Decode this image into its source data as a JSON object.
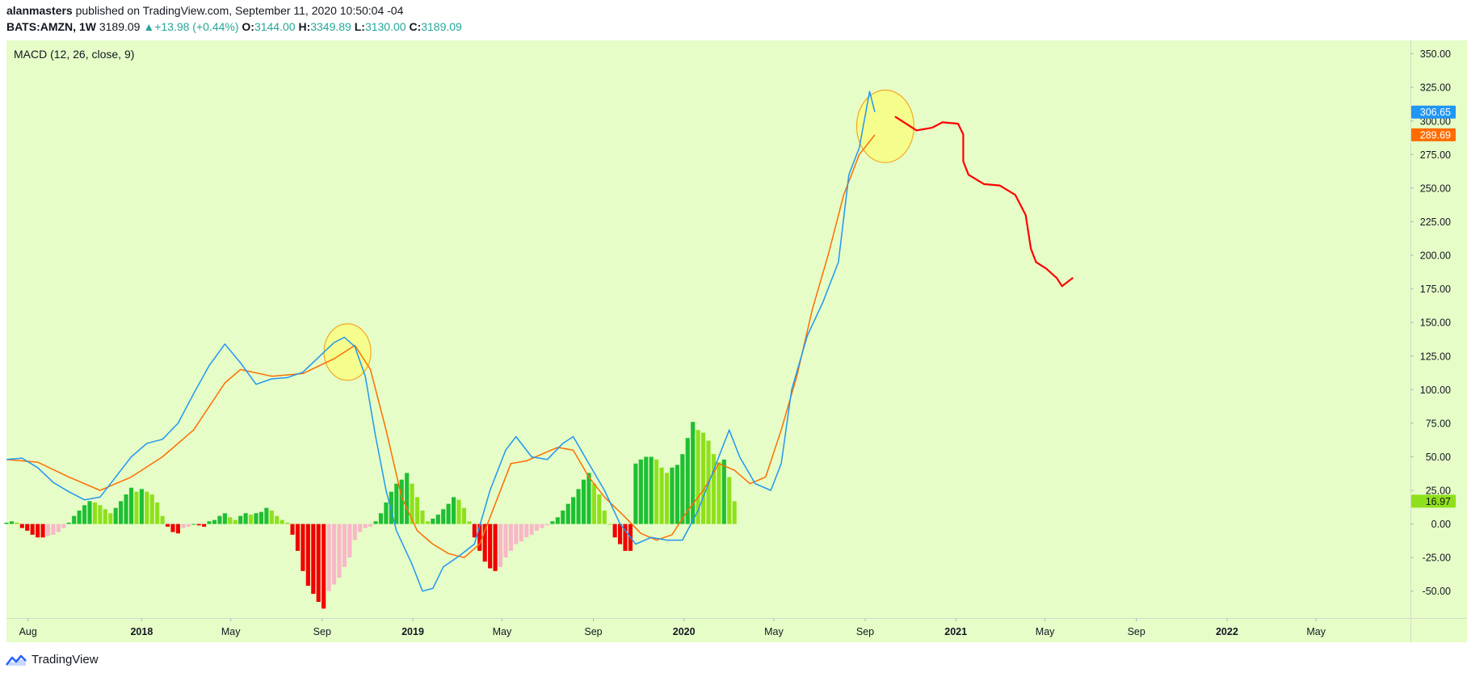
{
  "header": {
    "author": "alanmasters",
    "published_text": " published on TradingView.com, September 11, 2020 10:50:04 -04",
    "symbol": "BATS:AMZN, 1W",
    "price": "3189.09",
    "change_arrow": "▲",
    "change": "+13.98 (+0.44%)",
    "open_label": "O:",
    "open": "3144.00",
    "high_label": "H:",
    "high": "3349.89",
    "low_label": "L:",
    "low": "3130.00",
    "close_label": "C:",
    "close": "3189.09"
  },
  "colors": {
    "background": "#e6fdc7",
    "macd_line": "#2196f3",
    "signal_line": "#ff6d00",
    "hist_pos_strong": "#1fbf33",
    "hist_pos_weak": "#8fe01c",
    "hist_neg_strong": "#f00000",
    "hist_neg_weak": "#f8b8c8",
    "drawing": "#ff0000",
    "highlight": "#ffff66"
  },
  "footer": {
    "brand": "TradingView",
    "brand_icon": "tradingview-cloud-icon"
  },
  "chart_data": {
    "type": "line",
    "title": "MACD (12, 26, close, 9)",
    "y_axis": {
      "ylim": [
        -70,
        360
      ],
      "ticks": [
        350,
        325,
        300,
        275,
        250,
        225,
        200,
        175,
        150,
        125,
        100,
        75,
        50,
        25,
        0,
        -25,
        -50
      ],
      "position": "right"
    },
    "x_axis": {
      "ticks": [
        "Aug",
        "2018",
        "May",
        "Sep",
        "2019",
        "May",
        "Sep",
        "2020",
        "May",
        "Sep",
        "2021",
        "May",
        "Sep",
        "2022",
        "May"
      ],
      "bold_ticks": [
        "2018",
        "2019",
        "2020",
        "2021",
        "2022"
      ],
      "start": "2017-07-03",
      "end": "2022-09-05",
      "tick_dates": [
        "2017-08-01",
        "2018-01-01",
        "2018-05-01",
        "2018-09-01",
        "2019-01-01",
        "2019-05-01",
        "2019-09-01",
        "2020-01-01",
        "2020-05-01",
        "2020-09-01",
        "2021-01-01",
        "2021-05-01",
        "2021-09-01",
        "2022-01-01",
        "2022-05-01"
      ]
    },
    "grid": false,
    "price_labels": [
      {
        "value": 306.65,
        "text": "306.65",
        "color": "#2196f3",
        "series": "MACD"
      },
      {
        "value": 289.69,
        "text": "289.69",
        "color": "#ff6d00",
        "series": "Signal"
      },
      {
        "value": 16.97,
        "text": "16.97",
        "color": "#8fe01c",
        "series": "Histogram"
      }
    ],
    "series": [
      {
        "key": "macd",
        "type": "line",
        "color": "#2196f3",
        "points": [
          [
            "2017-07-03",
            48
          ],
          [
            "2017-07-24",
            49
          ],
          [
            "2017-08-14",
            42
          ],
          [
            "2017-09-04",
            31
          ],
          [
            "2017-09-25",
            24
          ],
          [
            "2017-10-16",
            18
          ],
          [
            "2017-11-06",
            20
          ],
          [
            "2017-11-27",
            35
          ],
          [
            "2017-12-18",
            50
          ],
          [
            "2018-01-08",
            60
          ],
          [
            "2018-01-29",
            63
          ],
          [
            "2018-02-19",
            75
          ],
          [
            "2018-03-12",
            97
          ],
          [
            "2018-04-02",
            118
          ],
          [
            "2018-04-23",
            134
          ],
          [
            "2018-05-14",
            120
          ],
          [
            "2018-06-04",
            104
          ],
          [
            "2018-06-25",
            108
          ],
          [
            "2018-07-16",
            109
          ],
          [
            "2018-08-06",
            113
          ],
          [
            "2018-08-27",
            124
          ],
          [
            "2018-09-17",
            135
          ],
          [
            "2018-10-01",
            139
          ],
          [
            "2018-10-15",
            132
          ],
          [
            "2018-10-29",
            110
          ],
          [
            "2018-11-12",
            65
          ],
          [
            "2018-11-26",
            25
          ],
          [
            "2018-12-10",
            -5
          ],
          [
            "2018-12-31",
            -30
          ],
          [
            "2019-01-14",
            -50
          ],
          [
            "2019-01-28",
            -48
          ],
          [
            "2019-02-11",
            -32
          ],
          [
            "2019-03-04",
            -24
          ],
          [
            "2019-03-25",
            -15
          ],
          [
            "2019-04-15",
            25
          ],
          [
            "2019-05-06",
            55
          ],
          [
            "2019-05-20",
            65
          ],
          [
            "2019-06-10",
            50
          ],
          [
            "2019-07-01",
            48
          ],
          [
            "2019-07-22",
            60
          ],
          [
            "2019-08-05",
            65
          ],
          [
            "2019-08-26",
            45
          ],
          [
            "2019-09-16",
            25
          ],
          [
            "2019-10-07",
            0
          ],
          [
            "2019-10-28",
            -15
          ],
          [
            "2019-11-18",
            -10
          ],
          [
            "2019-12-09",
            -12
          ],
          [
            "2019-12-30",
            -12
          ],
          [
            "2020-01-20",
            10
          ],
          [
            "2020-02-10",
            40
          ],
          [
            "2020-03-02",
            70
          ],
          [
            "2020-03-16",
            50
          ],
          [
            "2020-04-06",
            30
          ],
          [
            "2020-04-27",
            25
          ],
          [
            "2020-05-11",
            45
          ],
          [
            "2020-05-25",
            100
          ],
          [
            "2020-06-15",
            140
          ],
          [
            "2020-07-06",
            165
          ],
          [
            "2020-07-27",
            195
          ],
          [
            "2020-08-10",
            260
          ],
          [
            "2020-08-24",
            280
          ],
          [
            "2020-09-07",
            322
          ],
          [
            "2020-09-14",
            306.65
          ]
        ]
      },
      {
        "key": "signal",
        "type": "line",
        "color": "#ff6d00",
        "points": [
          [
            "2017-07-03",
            48
          ],
          [
            "2017-08-14",
            46
          ],
          [
            "2017-09-25",
            35
          ],
          [
            "2017-11-06",
            25
          ],
          [
            "2017-12-18",
            35
          ],
          [
            "2018-01-29",
            50
          ],
          [
            "2018-03-12",
            70
          ],
          [
            "2018-04-23",
            105
          ],
          [
            "2018-05-14",
            115
          ],
          [
            "2018-06-25",
            110
          ],
          [
            "2018-08-06",
            112
          ],
          [
            "2018-09-17",
            123
          ],
          [
            "2018-10-15",
            133
          ],
          [
            "2018-11-05",
            115
          ],
          [
            "2018-11-26",
            70
          ],
          [
            "2018-12-17",
            20
          ],
          [
            "2019-01-07",
            -5
          ],
          [
            "2019-01-28",
            -15
          ],
          [
            "2019-02-18",
            -22
          ],
          [
            "2019-03-11",
            -25
          ],
          [
            "2019-04-01",
            -15
          ],
          [
            "2019-04-22",
            15
          ],
          [
            "2019-05-13",
            45
          ],
          [
            "2019-06-03",
            47
          ],
          [
            "2019-06-24",
            52
          ],
          [
            "2019-07-15",
            57
          ],
          [
            "2019-08-05",
            55
          ],
          [
            "2019-08-26",
            35
          ],
          [
            "2019-09-16",
            20
          ],
          [
            "2019-10-14",
            5
          ],
          [
            "2019-11-04",
            -7
          ],
          [
            "2019-11-25",
            -12
          ],
          [
            "2019-12-16",
            -8
          ],
          [
            "2020-01-06",
            10
          ],
          [
            "2020-01-27",
            25
          ],
          [
            "2020-02-17",
            45
          ],
          [
            "2020-03-09",
            40
          ],
          [
            "2020-03-30",
            30
          ],
          [
            "2020-04-20",
            35
          ],
          [
            "2020-05-11",
            70
          ],
          [
            "2020-06-01",
            110
          ],
          [
            "2020-06-22",
            160
          ],
          [
            "2020-07-13",
            200
          ],
          [
            "2020-08-03",
            245
          ],
          [
            "2020-08-24",
            275
          ],
          [
            "2020-09-14",
            289.69
          ]
        ]
      },
      {
        "key": "histogram",
        "type": "bar",
        "start": "2017-07-03",
        "values": [
          1,
          2,
          1,
          -3,
          -5,
          -8,
          -10,
          -10,
          -9,
          -8,
          -6,
          -3,
          1,
          6,
          10,
          14,
          17,
          16,
          14,
          11,
          8,
          12,
          17,
          22,
          27,
          24,
          26,
          24,
          22,
          16,
          6,
          -2,
          -6,
          -7,
          -3,
          -2,
          0,
          -1,
          -2,
          2,
          3,
          6,
          8,
          5,
          3,
          6,
          8,
          7,
          8,
          9,
          12,
          10,
          6,
          3,
          1,
          -8,
          -20,
          -35,
          -46,
          -52,
          -58,
          -63,
          -50,
          -45,
          -40,
          -32,
          -25,
          -12,
          -6,
          -3,
          -2,
          2,
          8,
          16,
          24,
          30,
          33,
          38,
          30,
          20,
          10,
          2,
          4,
          7,
          11,
          15,
          20,
          18,
          12,
          2,
          -10,
          -20,
          -28,
          -33,
          -35,
          -32,
          -25,
          -20,
          -15,
          -13,
          -10,
          -8,
          -5,
          -3,
          -1,
          2,
          5,
          10,
          15,
          20,
          26,
          33,
          38,
          30,
          22,
          10,
          0,
          -10,
          -15,
          -20,
          -20,
          45,
          48,
          50,
          50,
          48,
          42,
          38,
          42,
          44,
          52,
          64,
          76,
          70,
          68,
          62,
          52,
          46,
          48,
          35,
          16.97
        ],
        "pos_strong_indices_rule": "rising",
        "neg_strong_indices_rule": "falling"
      }
    ],
    "annotations": [
      {
        "type": "ellipse",
        "center": [
          "2018-10-05",
          128
        ],
        "radius_weeks": 4.5,
        "radius_value": 21,
        "color": "#ffff66"
      },
      {
        "type": "ellipse",
        "center": [
          "2020-09-28",
          296
        ],
        "radius_weeks": 5.5,
        "radius_value": 27,
        "color": "#ffff66"
      },
      {
        "type": "freehand",
        "color": "#ff0000",
        "points": [
          [
            "2020-10-12",
            303
          ],
          [
            "2020-10-26",
            298
          ],
          [
            "2020-11-09",
            293
          ],
          [
            "2020-11-30",
            295
          ],
          [
            "2020-12-14",
            299
          ],
          [
            "2021-01-04",
            298
          ],
          [
            "2021-01-11",
            290
          ],
          [
            "2021-01-11",
            270
          ],
          [
            "2021-01-18",
            260
          ],
          [
            "2021-02-08",
            253
          ],
          [
            "2021-03-01",
            252
          ],
          [
            "2021-03-22",
            245
          ],
          [
            "2021-04-05",
            230
          ],
          [
            "2021-04-12",
            205
          ],
          [
            "2021-04-19",
            195
          ],
          [
            "2021-05-03",
            190
          ],
          [
            "2021-05-17",
            183
          ],
          [
            "2021-05-24",
            177
          ],
          [
            "2021-06-07",
            183
          ]
        ]
      }
    ]
  }
}
